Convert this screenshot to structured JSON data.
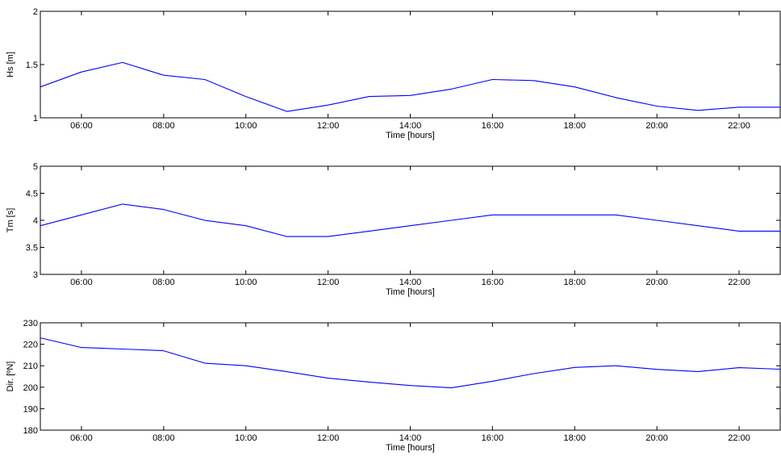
{
  "chart_data": [
    {
      "type": "line",
      "xlabel": "Time [hours]",
      "ylabel": "Hs [m]",
      "xlim": [
        5,
        23
      ],
      "ylim": [
        1,
        2
      ],
      "xticks": [
        {
          "value": 6,
          "label": "06:00"
        },
        {
          "value": 8,
          "label": "08:00"
        },
        {
          "value": 10,
          "label": "10:00"
        },
        {
          "value": 12,
          "label": "12:00"
        },
        {
          "value": 14,
          "label": "14:00"
        },
        {
          "value": 16,
          "label": "16:00"
        },
        {
          "value": 18,
          "label": "18:00"
        },
        {
          "value": 20,
          "label": "20:00"
        },
        {
          "value": 22,
          "label": "22:00"
        }
      ],
      "yticks": [
        {
          "value": 1,
          "label": "1"
        },
        {
          "value": 1.5,
          "label": "1.5"
        },
        {
          "value": 2,
          "label": "2"
        }
      ],
      "grid": false,
      "color": "#0000ff",
      "x": [
        5,
        6,
        7,
        8,
        9,
        10,
        11,
        12,
        13,
        14,
        15,
        16,
        17,
        18,
        19,
        20,
        21,
        22,
        23
      ],
      "y": [
        1.29,
        1.43,
        1.52,
        1.4,
        1.36,
        1.2,
        1.06,
        1.12,
        1.2,
        1.21,
        1.27,
        1.36,
        1.35,
        1.29,
        1.19,
        1.11,
        1.07,
        1.1,
        1.1
      ]
    },
    {
      "type": "line",
      "xlabel": "Time [hours]",
      "ylabel": "Tm [s]",
      "xlim": [
        5,
        23
      ],
      "ylim": [
        3,
        5
      ],
      "xticks": [
        {
          "value": 6,
          "label": "06:00"
        },
        {
          "value": 8,
          "label": "08:00"
        },
        {
          "value": 10,
          "label": "10:00"
        },
        {
          "value": 12,
          "label": "12:00"
        },
        {
          "value": 14,
          "label": "14:00"
        },
        {
          "value": 16,
          "label": "16:00"
        },
        {
          "value": 18,
          "label": "18:00"
        },
        {
          "value": 20,
          "label": "20:00"
        },
        {
          "value": 22,
          "label": "22:00"
        }
      ],
      "yticks": [
        {
          "value": 3,
          "label": "3"
        },
        {
          "value": 3.5,
          "label": "3.5"
        },
        {
          "value": 4,
          "label": "4"
        },
        {
          "value": 4.5,
          "label": "4.5"
        },
        {
          "value": 5,
          "label": "5"
        }
      ],
      "grid": false,
      "color": "#0000ff",
      "x": [
        5,
        6,
        7,
        8,
        9,
        10,
        11,
        12,
        13,
        14,
        15,
        16,
        17,
        18,
        19,
        20,
        21,
        22,
        23
      ],
      "y": [
        3.9,
        4.1,
        4.3,
        4.2,
        4.0,
        3.9,
        3.7,
        3.7,
        3.8,
        3.9,
        4.0,
        4.1,
        4.1,
        4.1,
        4.1,
        4.0,
        3.9,
        3.8,
        3.8
      ]
    },
    {
      "type": "line",
      "xlabel": "Time [hours]",
      "ylabel": "Dir. [ºN]",
      "xlim": [
        5,
        23
      ],
      "ylim": [
        180,
        230
      ],
      "xticks": [
        {
          "value": 6,
          "label": "06:00"
        },
        {
          "value": 8,
          "label": "08:00"
        },
        {
          "value": 10,
          "label": "10:00"
        },
        {
          "value": 12,
          "label": "12:00"
        },
        {
          "value": 14,
          "label": "14:00"
        },
        {
          "value": 16,
          "label": "16:00"
        },
        {
          "value": 18,
          "label": "18:00"
        },
        {
          "value": 20,
          "label": "20:00"
        },
        {
          "value": 22,
          "label": "22:00"
        }
      ],
      "yticks": [
        {
          "value": 180,
          "label": "180"
        },
        {
          "value": 190,
          "label": "190"
        },
        {
          "value": 200,
          "label": "200"
        },
        {
          "value": 210,
          "label": "210"
        },
        {
          "value": 220,
          "label": "220"
        },
        {
          "value": 230,
          "label": "230"
        }
      ],
      "grid": false,
      "color": "#0000ff",
      "x": [
        5,
        6,
        7,
        8,
        9,
        10,
        11,
        12,
        13,
        14,
        15,
        16,
        17,
        18,
        19,
        20,
        21,
        22,
        23
      ],
      "y": [
        223,
        218.5,
        217.8,
        217,
        211.2,
        210,
        207.2,
        204.2,
        202.4,
        200.8,
        199.7,
        202.8,
        206.3,
        209.2,
        210,
        208.3,
        207.3,
        209.1,
        208.4
      ]
    }
  ]
}
